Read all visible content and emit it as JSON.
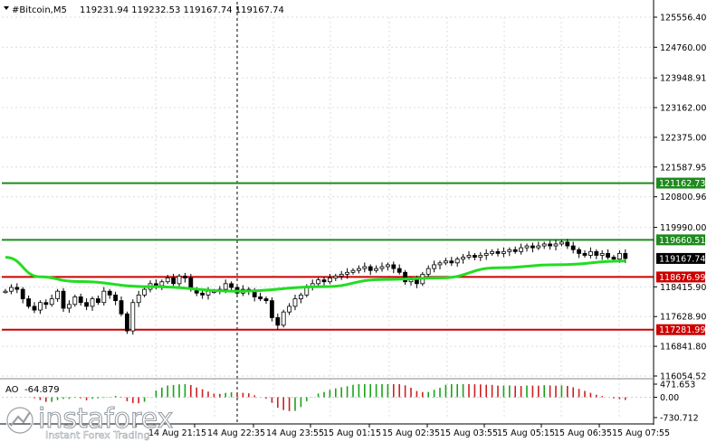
{
  "header": {
    "symbol": "#Bitcoin,M5",
    "ohlc": "119231.94 119232.53 119167.74 119167.74"
  },
  "colors": {
    "grid": "#dcdcdc",
    "axis": "#000000",
    "candle": "#000000",
    "ma": "#22dd22",
    "green_level": "#1f8a1f",
    "red_level": "#cc0000",
    "ao_up": "#1aa31a",
    "ao_down": "#cc2222",
    "cursor": "#000000"
  },
  "chart_data": [
    {
      "type": "candlestick",
      "title": "#Bitcoin,M5",
      "ylim": [
        116054.52,
        125556.4
      ],
      "y_ticks": [
        {
          "value": 125556.4,
          "label": "125556.40"
        },
        {
          "value": 124760.0,
          "label": "124760.00"
        },
        {
          "value": 123948.91,
          "label": "123948.91"
        },
        {
          "value": 123162.0,
          "label": "123162.00"
        },
        {
          "value": 122375.0,
          "label": "122375.00"
        },
        {
          "value": 121587.95,
          "label": "121587.95"
        },
        {
          "value": 120800.96,
          "label": "120800.96"
        },
        {
          "value": 119990.0,
          "label": "119990.00"
        },
        {
          "value": 118415.9,
          "label": "118415.90"
        },
        {
          "value": 117628.9,
          "label": "117628.90"
        },
        {
          "value": 116841.8,
          "label": "116841.80"
        },
        {
          "value": 116054.52,
          "label": "116054.52"
        }
      ],
      "levels": [
        {
          "value": 121162.73,
          "label": "121162.73",
          "color": "green"
        },
        {
          "value": 119660.51,
          "label": "119660.51",
          "color": "green"
        },
        {
          "value": 118676.99,
          "label": "118676.99",
          "color": "red"
        },
        {
          "value": 117281.99,
          "label": "117281.99",
          "color": "red"
        }
      ],
      "current_price": {
        "value": 119167.74,
        "label": "119167.74"
      },
      "x_labels": [
        "14 Aug 21:15",
        "14 Aug 22:35",
        "14 Aug 23:55",
        "15 Aug 01:15",
        "15 Aug 02:35",
        "15 Aug 03:55",
        "15 Aug 05:15",
        "15 Aug 06:35",
        "15 Aug 07:55"
      ],
      "closes": [
        118300,
        118400,
        118350,
        118100,
        117900,
        117800,
        118000,
        117950,
        118100,
        118300,
        117850,
        117950,
        118150,
        118000,
        117900,
        118100,
        118000,
        118300,
        118200,
        118050,
        117700,
        117250,
        118000,
        118200,
        118350,
        118500,
        118450,
        118550,
        118650,
        118500,
        118700,
        118650,
        118350,
        118250,
        118200,
        118300,
        118300,
        118350,
        118500,
        118400,
        118250,
        118350,
        118300,
        118150,
        118100,
        118050,
        117600,
        117400,
        117750,
        117900,
        118100,
        118200,
        118400,
        118500,
        118600,
        118550,
        118650,
        118700,
        118750,
        118800,
        118850,
        118900,
        118950,
        118850,
        118900,
        118950,
        119000,
        118900,
        118800,
        118550,
        118600,
        118500,
        118750,
        118900,
        119000,
        119050,
        119100,
        119050,
        119150,
        119200,
        119250,
        119200,
        119250,
        119300,
        119350,
        119300,
        119350,
        119400,
        119350,
        119450,
        119500,
        119450,
        119500,
        119550,
        119500,
        119550,
        119600,
        119500,
        119400,
        119300,
        119250,
        119350,
        119250,
        119300,
        119200,
        119150,
        119300,
        119167.74
      ],
      "ma_points": [
        {
          "i": 0,
          "v": 119200
        },
        {
          "i": 6,
          "v": 118680
        },
        {
          "i": 12,
          "v": 118560
        },
        {
          "i": 25,
          "v": 118420
        },
        {
          "i": 40,
          "v": 118300
        },
        {
          "i": 55,
          "v": 118420
        },
        {
          "i": 65,
          "v": 118610
        },
        {
          "i": 75,
          "v": 118650
        },
        {
          "i": 85,
          "v": 118920
        },
        {
          "i": 95,
          "v": 119000
        },
        {
          "i": 107,
          "v": 119100
        }
      ],
      "ao": {
        "label": "AO",
        "value": "-64.879",
        "ylim": [
          -730.712,
          471.653
        ],
        "y_ticks": [
          {
            "value": 471.653,
            "label": "471.653"
          },
          {
            "value": 0,
            "label": "0.00"
          },
          {
            "value": -730.712,
            "label": "-730.712"
          }
        ]
      }
    }
  ],
  "watermark": {
    "brand": "instaforex",
    "tagline": "Instant Forex Trading"
  }
}
